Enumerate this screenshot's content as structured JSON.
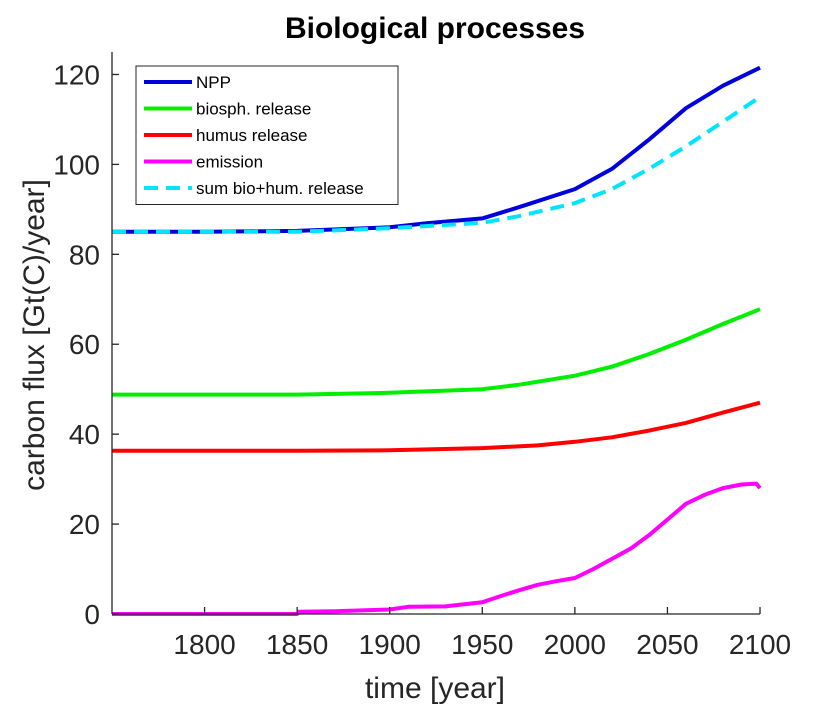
{
  "chart_data": {
    "type": "line",
    "title": "Biological processes",
    "xlabel": "time [year]",
    "ylabel": "carbon flux [Gt(C)/year]",
    "xlim": [
      1750,
      2100
    ],
    "ylim": [
      0,
      125
    ],
    "xticks": [
      1800,
      1850,
      1900,
      1950,
      2000,
      2050,
      2100
    ],
    "yticks": [
      0,
      20,
      40,
      60,
      80,
      100,
      120
    ],
    "grid": false,
    "legend_position": "top-left",
    "series": [
      {
        "name": "NPP",
        "color": "#0000dd",
        "dash": "solid",
        "x": [
          1750,
          1800,
          1850,
          1900,
          1920,
          1950,
          1970,
          2000,
          2020,
          2040,
          2060,
          2080,
          2100
        ],
        "y": [
          85.0,
          85.0,
          85.2,
          86.0,
          86.9,
          88.0,
          90.5,
          94.5,
          99.0,
          105.5,
          112.5,
          117.5,
          121.5
        ]
      },
      {
        "name": "biosph. release",
        "color": "#00ee00",
        "dash": "solid",
        "x": [
          1750,
          1800,
          1850,
          1900,
          1950,
          1970,
          2000,
          2020,
          2040,
          2060,
          2080,
          2100
        ],
        "y": [
          48.8,
          48.8,
          48.8,
          49.2,
          50.0,
          51.0,
          53.0,
          55.0,
          57.8,
          61.0,
          64.5,
          67.8
        ]
      },
      {
        "name": "humus release",
        "color": "#ff0000",
        "dash": "solid",
        "x": [
          1750,
          1800,
          1850,
          1900,
          1950,
          1980,
          2000,
          2020,
          2040,
          2060,
          2080,
          2100
        ],
        "y": [
          36.3,
          36.3,
          36.3,
          36.4,
          36.9,
          37.5,
          38.3,
          39.3,
          40.8,
          42.5,
          44.8,
          47.0
        ]
      },
      {
        "name": "emission",
        "color": "#ff00ff",
        "dash": "solid",
        "x": [
          1750,
          1800,
          1850,
          1851,
          1870,
          1900,
          1910,
          1930,
          1950,
          1960,
          1970,
          1980,
          1990,
          2000,
          2010,
          2030,
          2040,
          2050,
          2060,
          2070,
          2080,
          2090,
          2098,
          2100
        ],
        "y": [
          0,
          0,
          0,
          0.5,
          0.6,
          1.0,
          1.6,
          1.7,
          2.6,
          4.0,
          5.3,
          6.5,
          7.3,
          8.0,
          10.0,
          14.5,
          17.5,
          21.0,
          24.5,
          26.5,
          28.0,
          28.8,
          29.0,
          28.0
        ]
      },
      {
        "name": "sum bio+hum. release",
        "color": "#00e5ff",
        "dash": "dashed",
        "x": [
          1750,
          1800,
          1850,
          1900,
          1950,
          1970,
          2000,
          2020,
          2040,
          2060,
          2080,
          2100
        ],
        "y": [
          85.0,
          85.0,
          85.0,
          85.8,
          87.0,
          88.5,
          91.4,
          94.5,
          99.0,
          104.0,
          109.5,
          115.0
        ]
      }
    ]
  }
}
